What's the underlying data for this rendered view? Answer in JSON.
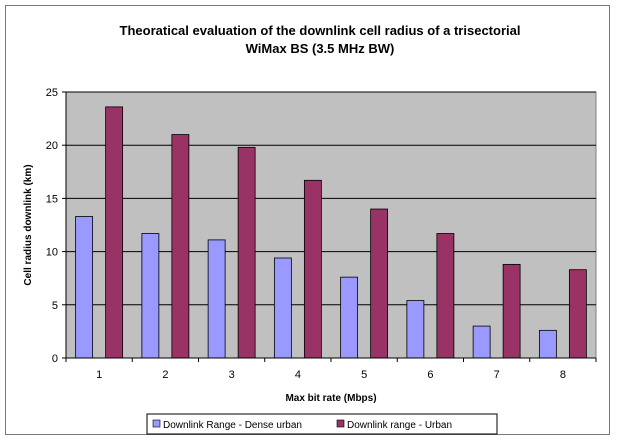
{
  "chart_data": {
    "type": "bar",
    "title_lines": [
      "Theoratical evaluation of the downlink cell radius of a trisectorial",
      "WiMax BS (3.5 MHz BW)"
    ],
    "xlabel": "Max bit rate (Mbps)",
    "ylabel": "Cell radius downlink (km)",
    "categories": [
      "1",
      "2",
      "3",
      "4",
      "5",
      "6",
      "7",
      "8"
    ],
    "ylim": [
      0,
      25
    ],
    "yticks": [
      0,
      5,
      10,
      15,
      20,
      25
    ],
    "grid": true,
    "legend_position": "bottom",
    "colors": {
      "plot_background": "#c0c0c0",
      "series_1": "#9999ff",
      "series_2": "#993366",
      "grid": "#000000"
    },
    "series": [
      {
        "name": "Downlink Range - Dense urban",
        "values": [
          13.3,
          11.7,
          11.1,
          9.4,
          7.6,
          5.4,
          3.0,
          2.6
        ]
      },
      {
        "name": "Downlink range - Urban",
        "values": [
          23.6,
          21.0,
          19.8,
          16.7,
          14.0,
          11.7,
          8.8,
          8.3
        ]
      }
    ]
  }
}
